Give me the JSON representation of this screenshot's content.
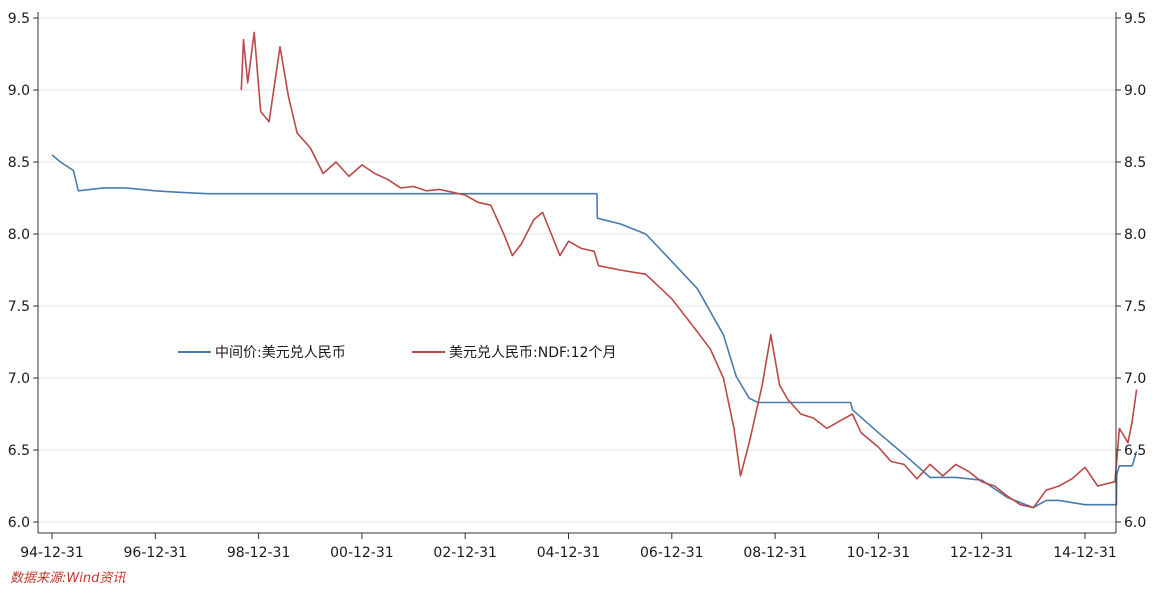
{
  "chart_data": {
    "type": "line",
    "title": "",
    "xlabel": "",
    "ylabel": "",
    "x_tick_labels": [
      "94-12-31",
      "96-12-31",
      "98-12-31",
      "00-12-31",
      "02-12-31",
      "04-12-31",
      "06-12-31",
      "08-12-31",
      "10-12-31",
      "12-12-31",
      "14-12-31"
    ],
    "y_tick_labels": [
      "6.0",
      "6.5",
      "7.0",
      "7.5",
      "8.0",
      "8.5",
      "9.0",
      "9.5"
    ],
    "ylim": [
      6.0,
      9.5
    ],
    "xlim": [
      "1994-12-31",
      "2015-12-31"
    ],
    "grid": true,
    "legend_position": "center-left",
    "series": [
      {
        "name": "中间价:美元兑人民币",
        "color": "#4a7bad",
        "points": [
          [
            "1994-12-31",
            8.55
          ],
          [
            "1995-03-01",
            8.5
          ],
          [
            "1995-06-01",
            8.44
          ],
          [
            "1995-07-05",
            8.3
          ],
          [
            "1995-12-31",
            8.32
          ],
          [
            "1996-06-01",
            8.32
          ],
          [
            "1996-12-31",
            8.3
          ],
          [
            "1997-06-01",
            8.29
          ],
          [
            "1997-12-31",
            8.28
          ],
          [
            "1998-12-31",
            8.28
          ],
          [
            "1999-12-31",
            8.28
          ],
          [
            "2001-12-31",
            8.28
          ],
          [
            "2003-12-31",
            8.28
          ],
          [
            "2005-07-20",
            8.28
          ],
          [
            "2005-07-22",
            8.11
          ],
          [
            "2005-12-31",
            8.07
          ],
          [
            "2006-06-30",
            8.0
          ],
          [
            "2006-12-31",
            7.81
          ],
          [
            "2007-06-30",
            7.62
          ],
          [
            "2007-12-31",
            7.3
          ],
          [
            "2008-03-31",
            7.01
          ],
          [
            "2008-06-30",
            6.86
          ],
          [
            "2008-08-31",
            6.83
          ],
          [
            "2009-06-30",
            6.83
          ],
          [
            "2010-06-18",
            6.83
          ],
          [
            "2010-06-30",
            6.78
          ],
          [
            "2010-12-31",
            6.62
          ],
          [
            "2011-06-30",
            6.47
          ],
          [
            "2011-12-31",
            6.31
          ],
          [
            "2012-06-30",
            6.31
          ],
          [
            "2012-12-31",
            6.29
          ],
          [
            "2013-06-30",
            6.17
          ],
          [
            "2013-12-31",
            6.1
          ],
          [
            "2014-03-31",
            6.15
          ],
          [
            "2014-06-30",
            6.15
          ],
          [
            "2014-12-31",
            6.12
          ],
          [
            "2015-08-10",
            6.12
          ],
          [
            "2015-08-12",
            6.33
          ],
          [
            "2015-08-31",
            6.39
          ],
          [
            "2015-11-30",
            6.39
          ],
          [
            "2015-12-31",
            6.49
          ]
        ]
      },
      {
        "name": "美元兑人民币:NDF:12个月",
        "color": "#b94a48",
        "points": [
          [
            "1998-08-31",
            9.0
          ],
          [
            "1998-09-15",
            9.35
          ],
          [
            "1998-10-15",
            9.05
          ],
          [
            "1998-11-30",
            9.4
          ],
          [
            "1999-01-15",
            8.85
          ],
          [
            "1999-03-15",
            8.78
          ],
          [
            "1999-05-31",
            9.3
          ],
          [
            "1999-07-31",
            8.95
          ],
          [
            "1999-09-30",
            8.7
          ],
          [
            "1999-12-31",
            8.6
          ],
          [
            "2000-03-31",
            8.42
          ],
          [
            "2000-06-30",
            8.5
          ],
          [
            "2000-09-30",
            8.4
          ],
          [
            "2000-12-31",
            8.48
          ],
          [
            "2001-03-31",
            8.42
          ],
          [
            "2001-06-30",
            8.38
          ],
          [
            "2001-09-30",
            8.32
          ],
          [
            "2001-12-31",
            8.33
          ],
          [
            "2002-03-31",
            8.3
          ],
          [
            "2002-06-30",
            8.31
          ],
          [
            "2002-09-30",
            8.29
          ],
          [
            "2002-12-31",
            8.27
          ],
          [
            "2003-03-31",
            8.22
          ],
          [
            "2003-06-30",
            8.2
          ],
          [
            "2003-09-30",
            8.0
          ],
          [
            "2003-11-30",
            7.85
          ],
          [
            "2004-01-31",
            7.93
          ],
          [
            "2004-04-30",
            8.1
          ],
          [
            "2004-06-30",
            8.15
          ],
          [
            "2004-08-31",
            8.0
          ],
          [
            "2004-10-31",
            7.85
          ],
          [
            "2004-12-31",
            7.95
          ],
          [
            "2005-03-31",
            7.9
          ],
          [
            "2005-06-30",
            7.88
          ],
          [
            "2005-07-31",
            7.78
          ],
          [
            "2005-12-31",
            7.75
          ],
          [
            "2006-06-30",
            7.72
          ],
          [
            "2006-12-31",
            7.55
          ],
          [
            "2007-06-30",
            7.32
          ],
          [
            "2007-09-30",
            7.2
          ],
          [
            "2007-12-31",
            7.0
          ],
          [
            "2008-03-15",
            6.65
          ],
          [
            "2008-04-30",
            6.32
          ],
          [
            "2008-06-30",
            6.55
          ],
          [
            "2008-09-30",
            6.95
          ],
          [
            "2008-11-30",
            7.3
          ],
          [
            "2009-01-31",
            6.95
          ],
          [
            "2009-03-31",
            6.85
          ],
          [
            "2009-06-30",
            6.75
          ],
          [
            "2009-09-30",
            6.72
          ],
          [
            "2009-12-31",
            6.65
          ],
          [
            "2010-03-31",
            6.7
          ],
          [
            "2010-06-30",
            6.75
          ],
          [
            "2010-08-31",
            6.62
          ],
          [
            "2010-12-31",
            6.52
          ],
          [
            "2011-03-31",
            6.42
          ],
          [
            "2011-06-30",
            6.4
          ],
          [
            "2011-09-30",
            6.3
          ],
          [
            "2011-12-31",
            6.4
          ],
          [
            "2012-03-31",
            6.32
          ],
          [
            "2012-06-30",
            6.4
          ],
          [
            "2012-09-30",
            6.35
          ],
          [
            "2012-12-31",
            6.28
          ],
          [
            "2013-03-31",
            6.25
          ],
          [
            "2013-06-30",
            6.18
          ],
          [
            "2013-09-30",
            6.12
          ],
          [
            "2013-12-31",
            6.1
          ],
          [
            "2014-03-31",
            6.22
          ],
          [
            "2014-06-30",
            6.25
          ],
          [
            "2014-09-30",
            6.3
          ],
          [
            "2014-12-31",
            6.38
          ],
          [
            "2015-03-31",
            6.25
          ],
          [
            "2015-07-31",
            6.28
          ],
          [
            "2015-08-31",
            6.65
          ],
          [
            "2015-10-31",
            6.55
          ],
          [
            "2015-11-30",
            6.7
          ],
          [
            "2015-12-31",
            6.92
          ]
        ]
      }
    ]
  },
  "footer": {
    "source_note": "数据来源:Wind资讯"
  }
}
